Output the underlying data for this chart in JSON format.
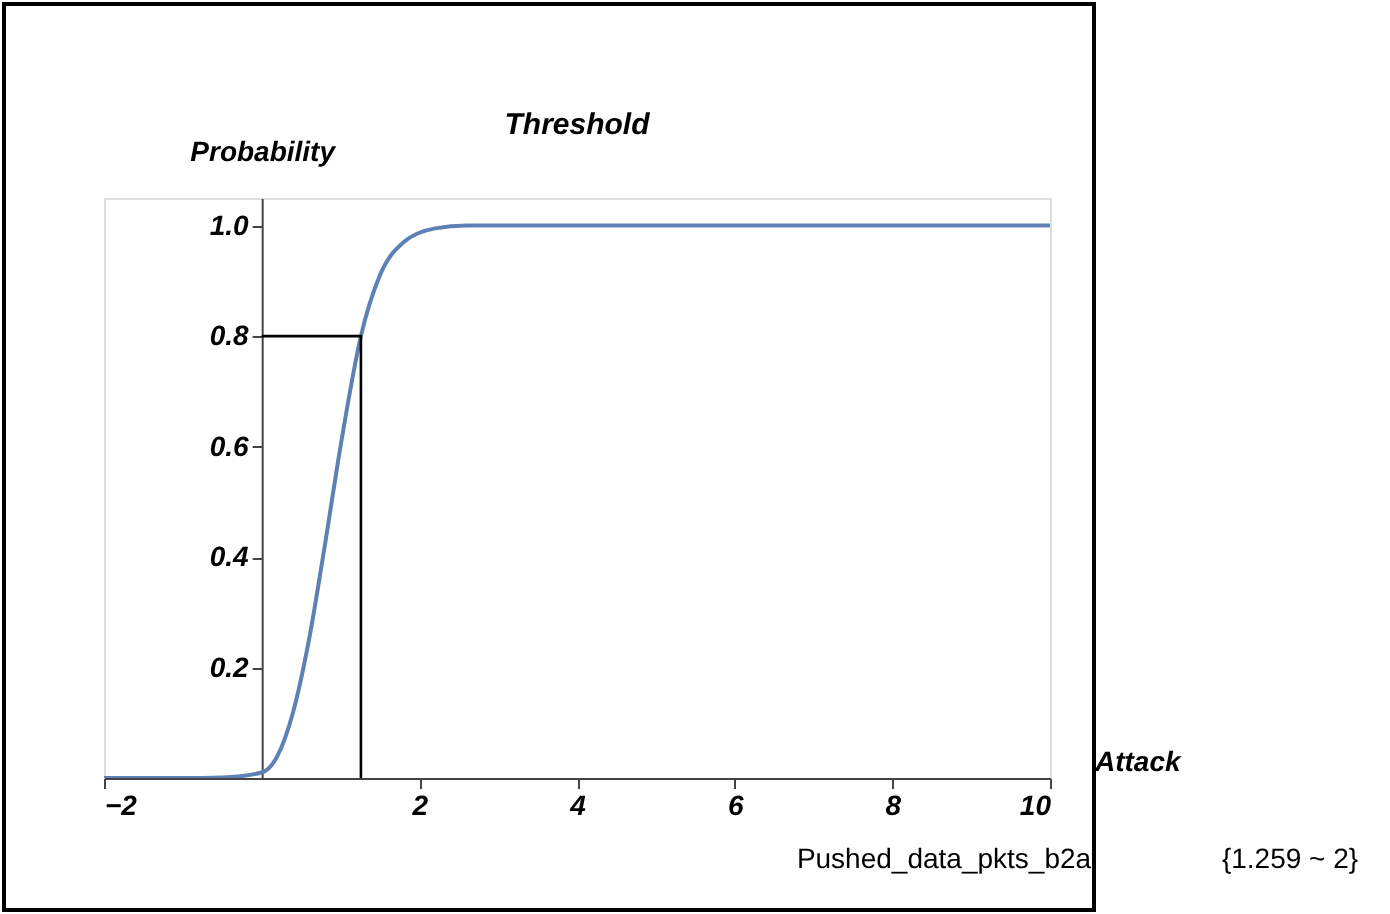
{
  "chart_data": {
    "type": "line",
    "title": "Threshold",
    "xlabel": "Attack",
    "ylabel": "Probability",
    "annotations": [
      "{1.259 ~ 2}",
      "Pushed_data_pkts_b2a"
    ],
    "xlim": [
      -2,
      10
    ],
    "ylim": [
      0,
      1.05
    ],
    "xticks": [
      {
        "value": -2,
        "label": "−2"
      },
      2,
      4,
      6,
      8,
      10
    ],
    "yticks": [
      0.2,
      0.4,
      0.6,
      0.8,
      {
        "value": 1,
        "label": "1.0"
      }
    ],
    "grid": false,
    "series": [
      {
        "color": "#5e81b5",
        "x": [
          -2,
          -1,
          -0.5,
          0,
          0.2,
          0.4,
          0.6,
          0.8,
          1.0,
          1.259,
          1.5,
          1.8,
          2.2,
          2.6,
          3,
          10
        ],
        "values": [
          0,
          0,
          0.001,
          0.01,
          0.04,
          0.12,
          0.25,
          0.42,
          0.6,
          0.8,
          0.91,
          0.97,
          0.995,
          1.0,
          1.0,
          1.0
        ]
      },
      {
        "color": "#000000",
        "x": [
          0,
          1.259,
          1.259
        ],
        "values": [
          0.8,
          0.8,
          0
        ]
      }
    ]
  }
}
